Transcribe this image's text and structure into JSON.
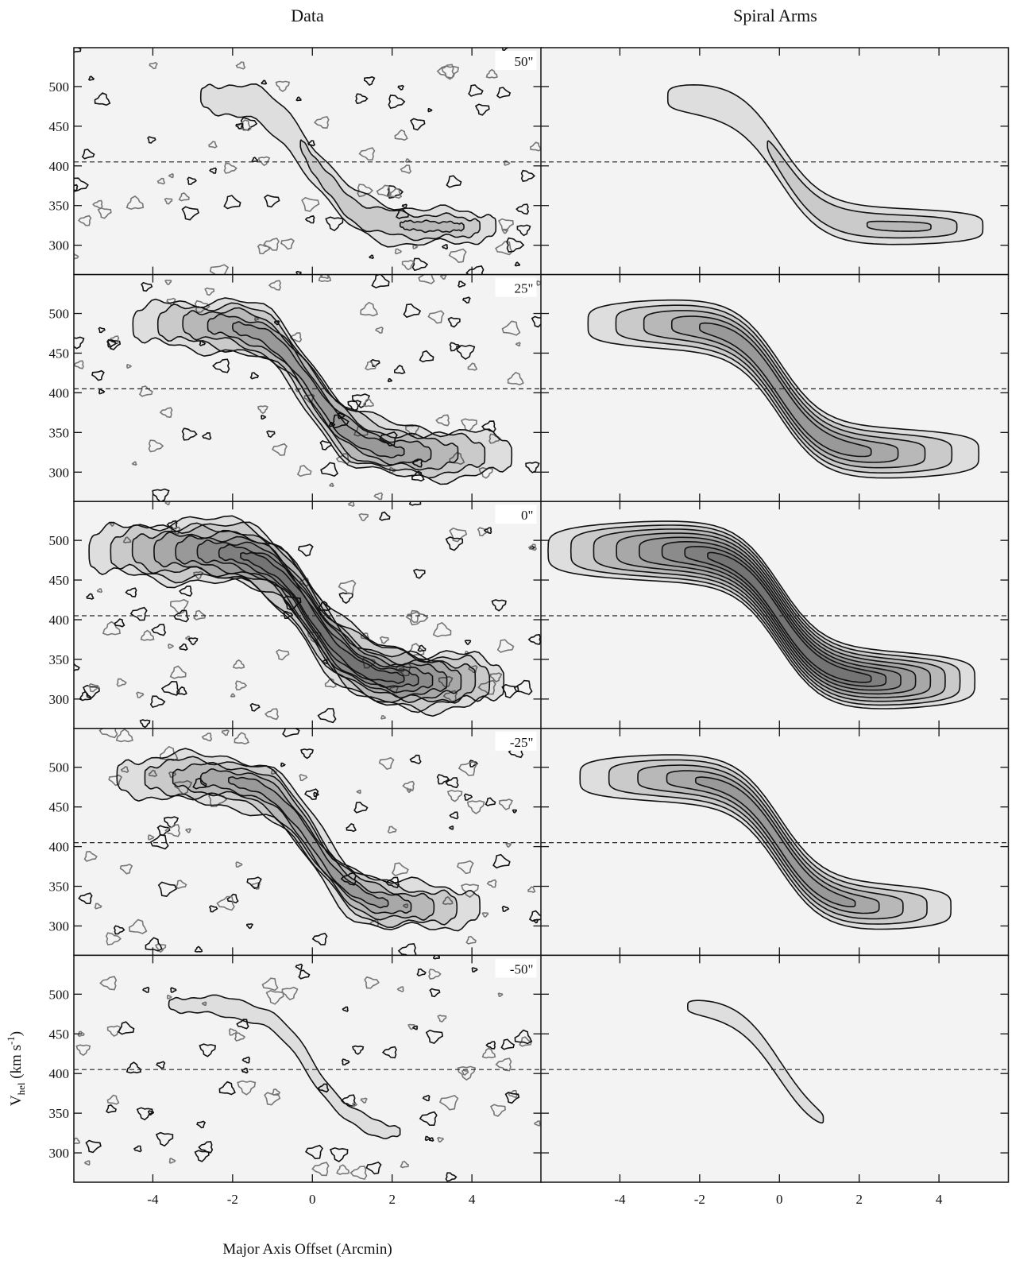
{
  "chart_data": {
    "type": "pv-grid",
    "column_titles": [
      "Data",
      "Spiral Arms"
    ],
    "row_labels": [
      "50\"",
      "25\"",
      "0\"",
      "-25\"",
      "-50\"",
      ""
    ],
    "xlabel": "Major Axis Offset (Arcmin)",
    "ylabel": {
      "main": "V",
      "sub": "hel",
      "unit": " (km s",
      "sup": "-1",
      "close": ")"
    },
    "xlim": [
      -5.98,
      5.74
    ],
    "xticks": [
      -4,
      -2,
      0,
      2,
      4
    ],
    "ylim": [
      263,
      549
    ],
    "yticks": [
      300,
      350,
      400,
      450,
      500
    ],
    "ref_velocity": 405
  }
}
